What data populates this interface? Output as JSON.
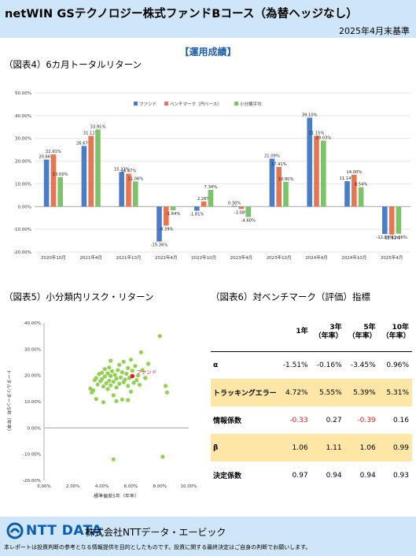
{
  "header": {
    "title": "netWIN GSテクノロジー株式ファンドBコース（為替ヘッジなし）",
    "date": "2025年4月末基準"
  },
  "section_title": "【運用成績】",
  "fig4": {
    "title": "（図表4）6カ月トータルリターン"
  },
  "fig5": {
    "title": "（図表5）小分類内リスク・リターン"
  },
  "fig6": {
    "title": "（図表6）対ベンチマーク（評価）指標",
    "columns": [
      "1年",
      "3年\n（年率）",
      "5年\n（年率）",
      "10年\n（年率）"
    ],
    "rows": [
      {
        "label": "α",
        "values": [
          "-1.51%",
          "-0.16%",
          "-3.45%",
          "0.96%"
        ],
        "highlight": false,
        "neg": [
          false,
          false,
          false,
          false
        ]
      },
      {
        "label": "トラッキングエラー",
        "values": [
          "4.72%",
          "5.55%",
          "5.39%",
          "5.31%"
        ],
        "highlight": true,
        "neg": [
          false,
          false,
          false,
          false
        ]
      },
      {
        "label": "情報係数",
        "values": [
          "-0.33",
          "0.27",
          "-0.39",
          "0.16"
        ],
        "highlight": false,
        "neg": [
          true,
          false,
          true,
          false
        ]
      },
      {
        "label": "β",
        "values": [
          "1.06",
          "1.11",
          "1.06",
          "0.99"
        ],
        "highlight": true,
        "neg": [
          false,
          false,
          false,
          false
        ]
      },
      {
        "label": "決定係数",
        "values": [
          "0.97",
          "0.94",
          "0.94",
          "0.93"
        ],
        "highlight": false,
        "neg": [
          false,
          false,
          false,
          false
        ]
      }
    ]
  },
  "chart_data": [
    {
      "type": "bar",
      "title": "",
      "categories": [
        "2020年10月",
        "2021年4月",
        "2021年10月",
        "2022年4月",
        "2022年10月",
        "2023年4月",
        "2023年10月",
        "2024年4月",
        "2024年10月",
        "2025年4月"
      ],
      "series": [
        {
          "name": "ファンド",
          "color": "#4a7cc7",
          "values": [
            20.66,
            26.67,
            15.22,
            -15.36,
            -1.81,
            0.3,
            21.09,
            39.1,
            11.14,
            -12.09
          ]
        },
        {
          "name": "ベンチマーク（円ベース）",
          "color": "#e97451",
          "values": [
            22.91,
            31.11,
            14.47,
            -8.39,
            2.26,
            -1.08,
            17.41,
            31.15,
            14.0,
            -12.32
          ]
        },
        {
          "name": "小分類平均",
          "color": "#7cc36a",
          "values": [
            13.0,
            33.91,
            11.06,
            -1.64,
            7.34,
            -4.6,
            10.9,
            29.03,
            8.54,
            -11.96
          ]
        }
      ],
      "labels": [
        [
          "20.66%",
          "26.67%",
          "15.22%",
          "-15.36%",
          "-1.81%",
          "0.30%",
          "21.09%",
          "39.10%",
          "11.14%",
          "-12.09%"
        ],
        [
          "22.91%",
          "31.11%",
          "14.47%",
          "-8.39%",
          "2.26%",
          "-1.08%",
          "17.41%",
          "31.15%",
          "14.00%",
          "-12.32%"
        ],
        [
          "13.00%",
          "33.91%",
          "11.06%",
          "-1.64%",
          "7.34%",
          "-4.60%",
          "10.90%",
          "29.03%",
          "8.54%",
          "-11.96%"
        ]
      ],
      "ylim": [
        -20,
        50
      ],
      "yticks": [
        "-20.00%",
        "-10.00%",
        "0.00%",
        "10.00%",
        "20.00%",
        "30.00%",
        "40.00%",
        "50.00%"
      ],
      "legend": "top-center"
    },
    {
      "type": "scatter",
      "xlabel": "標準偏差5年（年率）",
      "ylabel": "トータルリターン5年（年率）",
      "xlim": [
        0,
        10
      ],
      "ylim": [
        -20,
        40
      ],
      "xticks": [
        "0.00%",
        "2.00%",
        "4.00%",
        "6.00%",
        "8.00%",
        "10.00%"
      ],
      "yticks": [
        "-20.00%",
        "-10.00%",
        "0.00%",
        "10.00%",
        "20.00%",
        "30.00%",
        "40.00%"
      ],
      "point_color": "#92d050",
      "highlight_color": "#e02020",
      "highlight": {
        "name": "ファンド",
        "x": 6.1,
        "y": 19.7
      },
      "points": [
        [
          3.2,
          15.0
        ],
        [
          3.3,
          13.5
        ],
        [
          3.4,
          14.3
        ],
        [
          3.5,
          18.2
        ],
        [
          3.6,
          19.0
        ],
        [
          3.7,
          16.5
        ],
        [
          3.8,
          20.5
        ],
        [
          3.9,
          17.8
        ],
        [
          4.0,
          21.0
        ],
        [
          4.0,
          18.6
        ],
        [
          4.1,
          15.8
        ],
        [
          4.2,
          19.6
        ],
        [
          4.2,
          22.4
        ],
        [
          4.3,
          17.0
        ],
        [
          4.4,
          14.8
        ],
        [
          4.4,
          20.8
        ],
        [
          4.5,
          18.0
        ],
        [
          4.5,
          23.0
        ],
        [
          4.6,
          16.2
        ],
        [
          4.6,
          19.8
        ],
        [
          4.7,
          21.6
        ],
        [
          4.8,
          12.4
        ],
        [
          4.8,
          17.6
        ],
        [
          4.9,
          20.2
        ],
        [
          5.0,
          15.4
        ],
        [
          5.0,
          18.8
        ],
        [
          5.1,
          22.0
        ],
        [
          5.2,
          16.8
        ],
        [
          5.2,
          24.0
        ],
        [
          5.3,
          19.2
        ],
        [
          5.4,
          10.8
        ],
        [
          5.4,
          21.2
        ],
        [
          5.5,
          17.4
        ],
        [
          5.5,
          25.2
        ],
        [
          5.6,
          18.4
        ],
        [
          5.7,
          20.6
        ],
        [
          5.8,
          16.0
        ],
        [
          5.8,
          22.8
        ],
        [
          5.9,
          19.0
        ],
        [
          6.0,
          26.0
        ],
        [
          6.0,
          13.8
        ],
        [
          6.1,
          21.8
        ],
        [
          6.2,
          17.2
        ],
        [
          6.3,
          23.6
        ],
        [
          6.4,
          18.2
        ],
        [
          6.5,
          20.0
        ],
        [
          6.6,
          16.4
        ],
        [
          6.7,
          28.8
        ],
        [
          6.8,
          22.0
        ],
        [
          7.0,
          19.0
        ],
        [
          7.2,
          24.4
        ],
        [
          3.6,
          11.0
        ],
        [
          4.1,
          9.8
        ],
        [
          5.0,
          10.2
        ],
        [
          5.8,
          10.6
        ],
        [
          4.6,
          25.6
        ],
        [
          8.0,
          35.0
        ],
        [
          8.4,
          16.0
        ],
        [
          8.5,
          13.5
        ],
        [
          8.2,
          -11.0
        ],
        [
          4.8,
          -12.0
        ]
      ]
    }
  ],
  "footer": {
    "logo": "NTT DATA",
    "company": "株式会社NTTデータ・エービック",
    "disclaimer": "本レポートは投資判断の参考となる情報提供を目的としたものです。投資に関する最終決定はご自身の判断でお願いします。"
  },
  "colors": {
    "header_bg": "#cfe6f8",
    "accent": "#1f5fa8",
    "highlight_row": "#fde6a6",
    "negative": "#e02020"
  }
}
